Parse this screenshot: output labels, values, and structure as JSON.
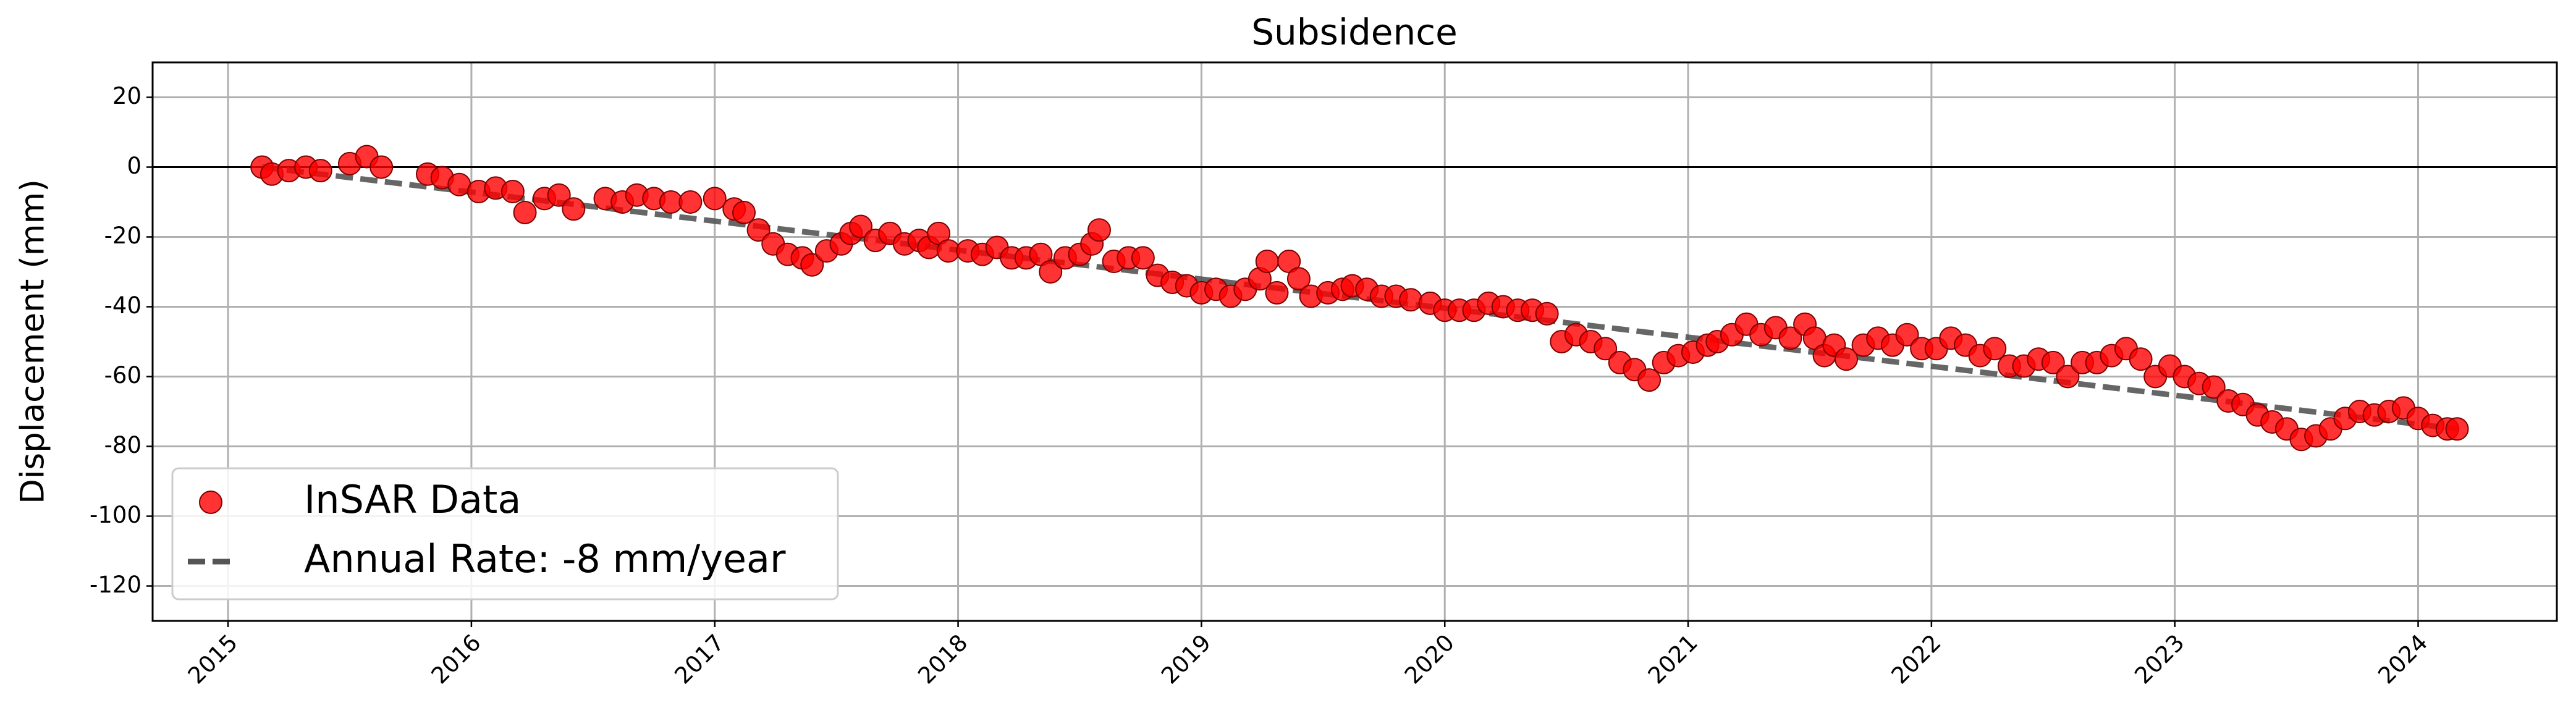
{
  "chart_data": {
    "type": "scatter",
    "title": "Subsidence",
    "y_label": "Displacement (mm)",
    "xlim": [
      2014.69,
      2024.57
    ],
    "xticks": [
      2015,
      2016,
      2017,
      2018,
      2019,
      2020,
      2021,
      2022,
      2023,
      2024
    ],
    "ylim": [
      -130,
      30
    ],
    "yticks": [
      20,
      0,
      -20,
      -40,
      -60,
      -80,
      -100,
      -120
    ],
    "grid": true,
    "hline": 0,
    "legend": "lower left",
    "series": [
      {
        "name": "InSAR Data",
        "type": "scatter",
        "color": "#ff0000",
        "x": [
          2015.14,
          2015.18,
          2015.25,
          2015.32,
          2015.38,
          2015.5,
          2015.57,
          2015.63,
          2015.82,
          2015.88,
          2015.95,
          2016.03,
          2016.1,
          2016.17,
          2016.22,
          2016.3,
          2016.36,
          2016.42,
          2016.55,
          2016.62,
          2016.68,
          2016.75,
          2016.82,
          2016.9,
          2017.0,
          2017.08,
          2017.12,
          2017.18,
          2017.24,
          2017.3,
          2017.36,
          2017.4,
          2017.46,
          2017.52,
          2017.56,
          2017.6,
          2017.66,
          2017.72,
          2017.78,
          2017.84,
          2017.88,
          2017.92,
          2017.96,
          2018.04,
          2018.1,
          2018.16,
          2018.22,
          2018.28,
          2018.34,
          2018.38,
          2018.44,
          2018.5,
          2018.55,
          2018.58,
          2018.64,
          2018.7,
          2018.76,
          2018.82,
          2018.88,
          2018.94,
          2019.0,
          2019.06,
          2019.12,
          2019.18,
          2019.24,
          2019.27,
          2019.31,
          2019.36,
          2019.4,
          2019.45,
          2019.52,
          2019.58,
          2019.62,
          2019.68,
          2019.74,
          2019.8,
          2019.86,
          2019.94,
          2020.0,
          2020.06,
          2020.12,
          2020.18,
          2020.24,
          2020.3,
          2020.36,
          2020.42,
          2020.48,
          2020.54,
          2020.6,
          2020.66,
          2020.72,
          2020.78,
          2020.84,
          2020.9,
          2020.96,
          2021.02,
          2021.08,
          2021.12,
          2021.18,
          2021.24,
          2021.3,
          2021.36,
          2021.42,
          2021.48,
          2021.52,
          2021.56,
          2021.6,
          2021.65,
          2021.72,
          2021.78,
          2021.84,
          2021.9,
          2021.96,
          2022.02,
          2022.08,
          2022.14,
          2022.2,
          2022.26,
          2022.32,
          2022.38,
          2022.44,
          2022.5,
          2022.56,
          2022.62,
          2022.68,
          2022.74,
          2022.8,
          2022.86,
          2022.92,
          2022.98,
          2023.04,
          2023.1,
          2023.16,
          2023.22,
          2023.28,
          2023.34,
          2023.4,
          2023.46,
          2023.52,
          2023.58,
          2023.64,
          2023.7,
          2023.76,
          2023.82,
          2023.88,
          2023.94,
          2024.0,
          2024.06,
          2024.12,
          2024.16
        ],
        "values": [
          0,
          -2,
          -1,
          0,
          -1,
          1,
          3,
          0,
          -2,
          -3,
          -5,
          -7,
          -6,
          -7,
          -13,
          -9,
          -8,
          -12,
          -9,
          -10,
          -8,
          -9,
          -10,
          -10,
          -9,
          -12,
          -13,
          -18,
          -22,
          -25,
          -26,
          -28,
          -24,
          -22,
          -19,
          -17,
          -21,
          -19,
          -22,
          -21,
          -23,
          -19,
          -24,
          -24,
          -25,
          -23,
          -26,
          -26,
          -25,
          -30,
          -26,
          -25,
          -22,
          -18,
          -27,
          -26,
          -26,
          -31,
          -33,
          -34,
          -36,
          -35,
          -37,
          -35,
          -32,
          -27,
          -36,
          -27,
          -32,
          -37,
          -36,
          -35,
          -34,
          -35,
          -37,
          -37,
          -38,
          -39,
          -41,
          -41,
          -41,
          -39,
          -40,
          -41,
          -41,
          -42,
          -50,
          -48,
          -50,
          -52,
          -56,
          -58,
          -61,
          -56,
          -54,
          -53,
          -51,
          -50,
          -48,
          -45,
          -48,
          -46,
          -49,
          -45,
          -49,
          -54,
          -51,
          -55,
          -51,
          -49,
          -51,
          -48,
          -52,
          -52,
          -49,
          -51,
          -54,
          -52,
          -57,
          -57,
          -55,
          -56,
          -60,
          -56,
          -56,
          -54,
          -52,
          -55,
          -60,
          -57,
          -60,
          -62,
          -63,
          -67,
          -68,
          -71,
          -73,
          -75,
          -78,
          -77,
          -75,
          -72,
          -70,
          -71,
          -70,
          -69,
          -72,
          -74,
          -75,
          -75
        ]
      },
      {
        "name": "Annual Rate: -8 mm/year",
        "type": "line",
        "color": "#555555",
        "x": [
          2015.14,
          2024.16
        ],
        "values": [
          0,
          -75
        ]
      }
    ]
  }
}
